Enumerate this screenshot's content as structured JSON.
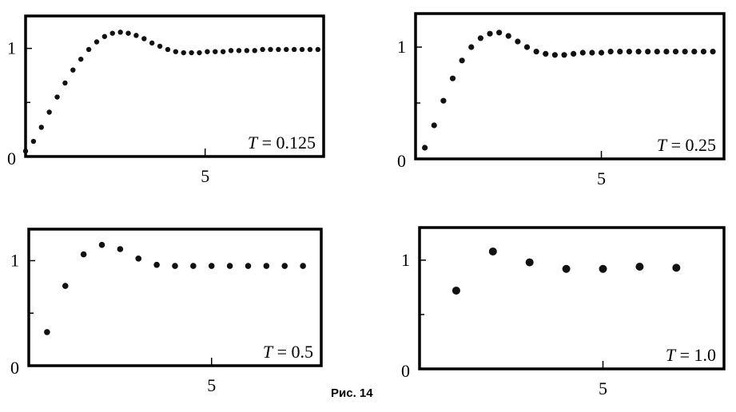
{
  "figure": {
    "caption": "Рис. 14"
  },
  "chart_data": [
    {
      "type": "scatter",
      "annotation_var": "T",
      "annotation_eq": " = 0.125",
      "xlim": [
        0,
        8.3
      ],
      "ylim": [
        0,
        1.3
      ],
      "xticks": [
        5
      ],
      "yticks": [
        0,
        1
      ],
      "x": [
        0.0,
        0.22,
        0.44,
        0.66,
        0.88,
        1.1,
        1.32,
        1.54,
        1.76,
        1.98,
        2.2,
        2.42,
        2.64,
        2.86,
        3.08,
        3.3,
        3.52,
        3.74,
        3.96,
        4.18,
        4.4,
        4.62,
        4.84,
        5.06,
        5.28,
        5.5,
        5.72,
        5.94,
        6.16,
        6.38,
        6.6,
        6.82,
        7.04,
        7.26,
        7.48,
        7.7,
        7.92,
        8.14
      ],
      "y": [
        0.05,
        0.14,
        0.27,
        0.41,
        0.55,
        0.68,
        0.8,
        0.9,
        0.99,
        1.06,
        1.11,
        1.14,
        1.15,
        1.14,
        1.12,
        1.09,
        1.05,
        1.02,
        0.99,
        0.97,
        0.96,
        0.96,
        0.96,
        0.97,
        0.97,
        0.97,
        0.98,
        0.98,
        0.98,
        0.98,
        0.99,
        0.99,
        0.99,
        0.99,
        0.99,
        0.99,
        0.99,
        0.99
      ]
    },
    {
      "type": "scatter",
      "annotation_var": "T",
      "annotation_eq": " = 0.25",
      "xlim": [
        0,
        8.3
      ],
      "ylim": [
        0,
        1.3
      ],
      "xticks": [
        5
      ],
      "yticks": [
        0,
        1
      ],
      "x": [
        0.25,
        0.5,
        0.75,
        1.0,
        1.25,
        1.5,
        1.75,
        2.0,
        2.25,
        2.5,
        2.75,
        3.0,
        3.25,
        3.5,
        3.75,
        4.0,
        4.25,
        4.5,
        4.75,
        5.0,
        5.25,
        5.5,
        5.75,
        6.0,
        6.25,
        6.5,
        6.75,
        7.0,
        7.25,
        7.5,
        7.75,
        8.0
      ],
      "y": [
        0.1,
        0.3,
        0.52,
        0.72,
        0.88,
        1.0,
        1.08,
        1.12,
        1.13,
        1.1,
        1.05,
        1.0,
        0.96,
        0.94,
        0.93,
        0.93,
        0.94,
        0.95,
        0.95,
        0.95,
        0.96,
        0.96,
        0.96,
        0.96,
        0.96,
        0.96,
        0.96,
        0.96,
        0.96,
        0.96,
        0.96,
        0.96
      ]
    },
    {
      "type": "scatter",
      "annotation_var": "T",
      "annotation_eq": " = 0.5",
      "xlim": [
        0,
        8.0
      ],
      "ylim": [
        0,
        1.3
      ],
      "xticks": [
        5
      ],
      "yticks": [
        0,
        1
      ],
      "x": [
        0.5,
        1.0,
        1.5,
        2.0,
        2.5,
        3.0,
        3.5,
        4.0,
        4.5,
        5.0,
        5.5,
        6.0,
        6.5,
        7.0,
        7.5
      ],
      "y": [
        0.32,
        0.76,
        1.06,
        1.15,
        1.11,
        1.02,
        0.96,
        0.95,
        0.95,
        0.95,
        0.95,
        0.95,
        0.95,
        0.95,
        0.95
      ]
    },
    {
      "type": "scatter",
      "annotation_var": "T",
      "annotation_eq": " = 1.0",
      "xlim": [
        0,
        8.3
      ],
      "ylim": [
        0,
        1.3
      ],
      "xticks": [
        5
      ],
      "yticks": [
        0,
        1
      ],
      "x": [
        1.0,
        2.0,
        3.0,
        4.0,
        5.0,
        6.0,
        7.0
      ],
      "y": [
        0.72,
        1.08,
        0.98,
        0.92,
        0.92,
        0.94,
        0.93
      ]
    }
  ]
}
